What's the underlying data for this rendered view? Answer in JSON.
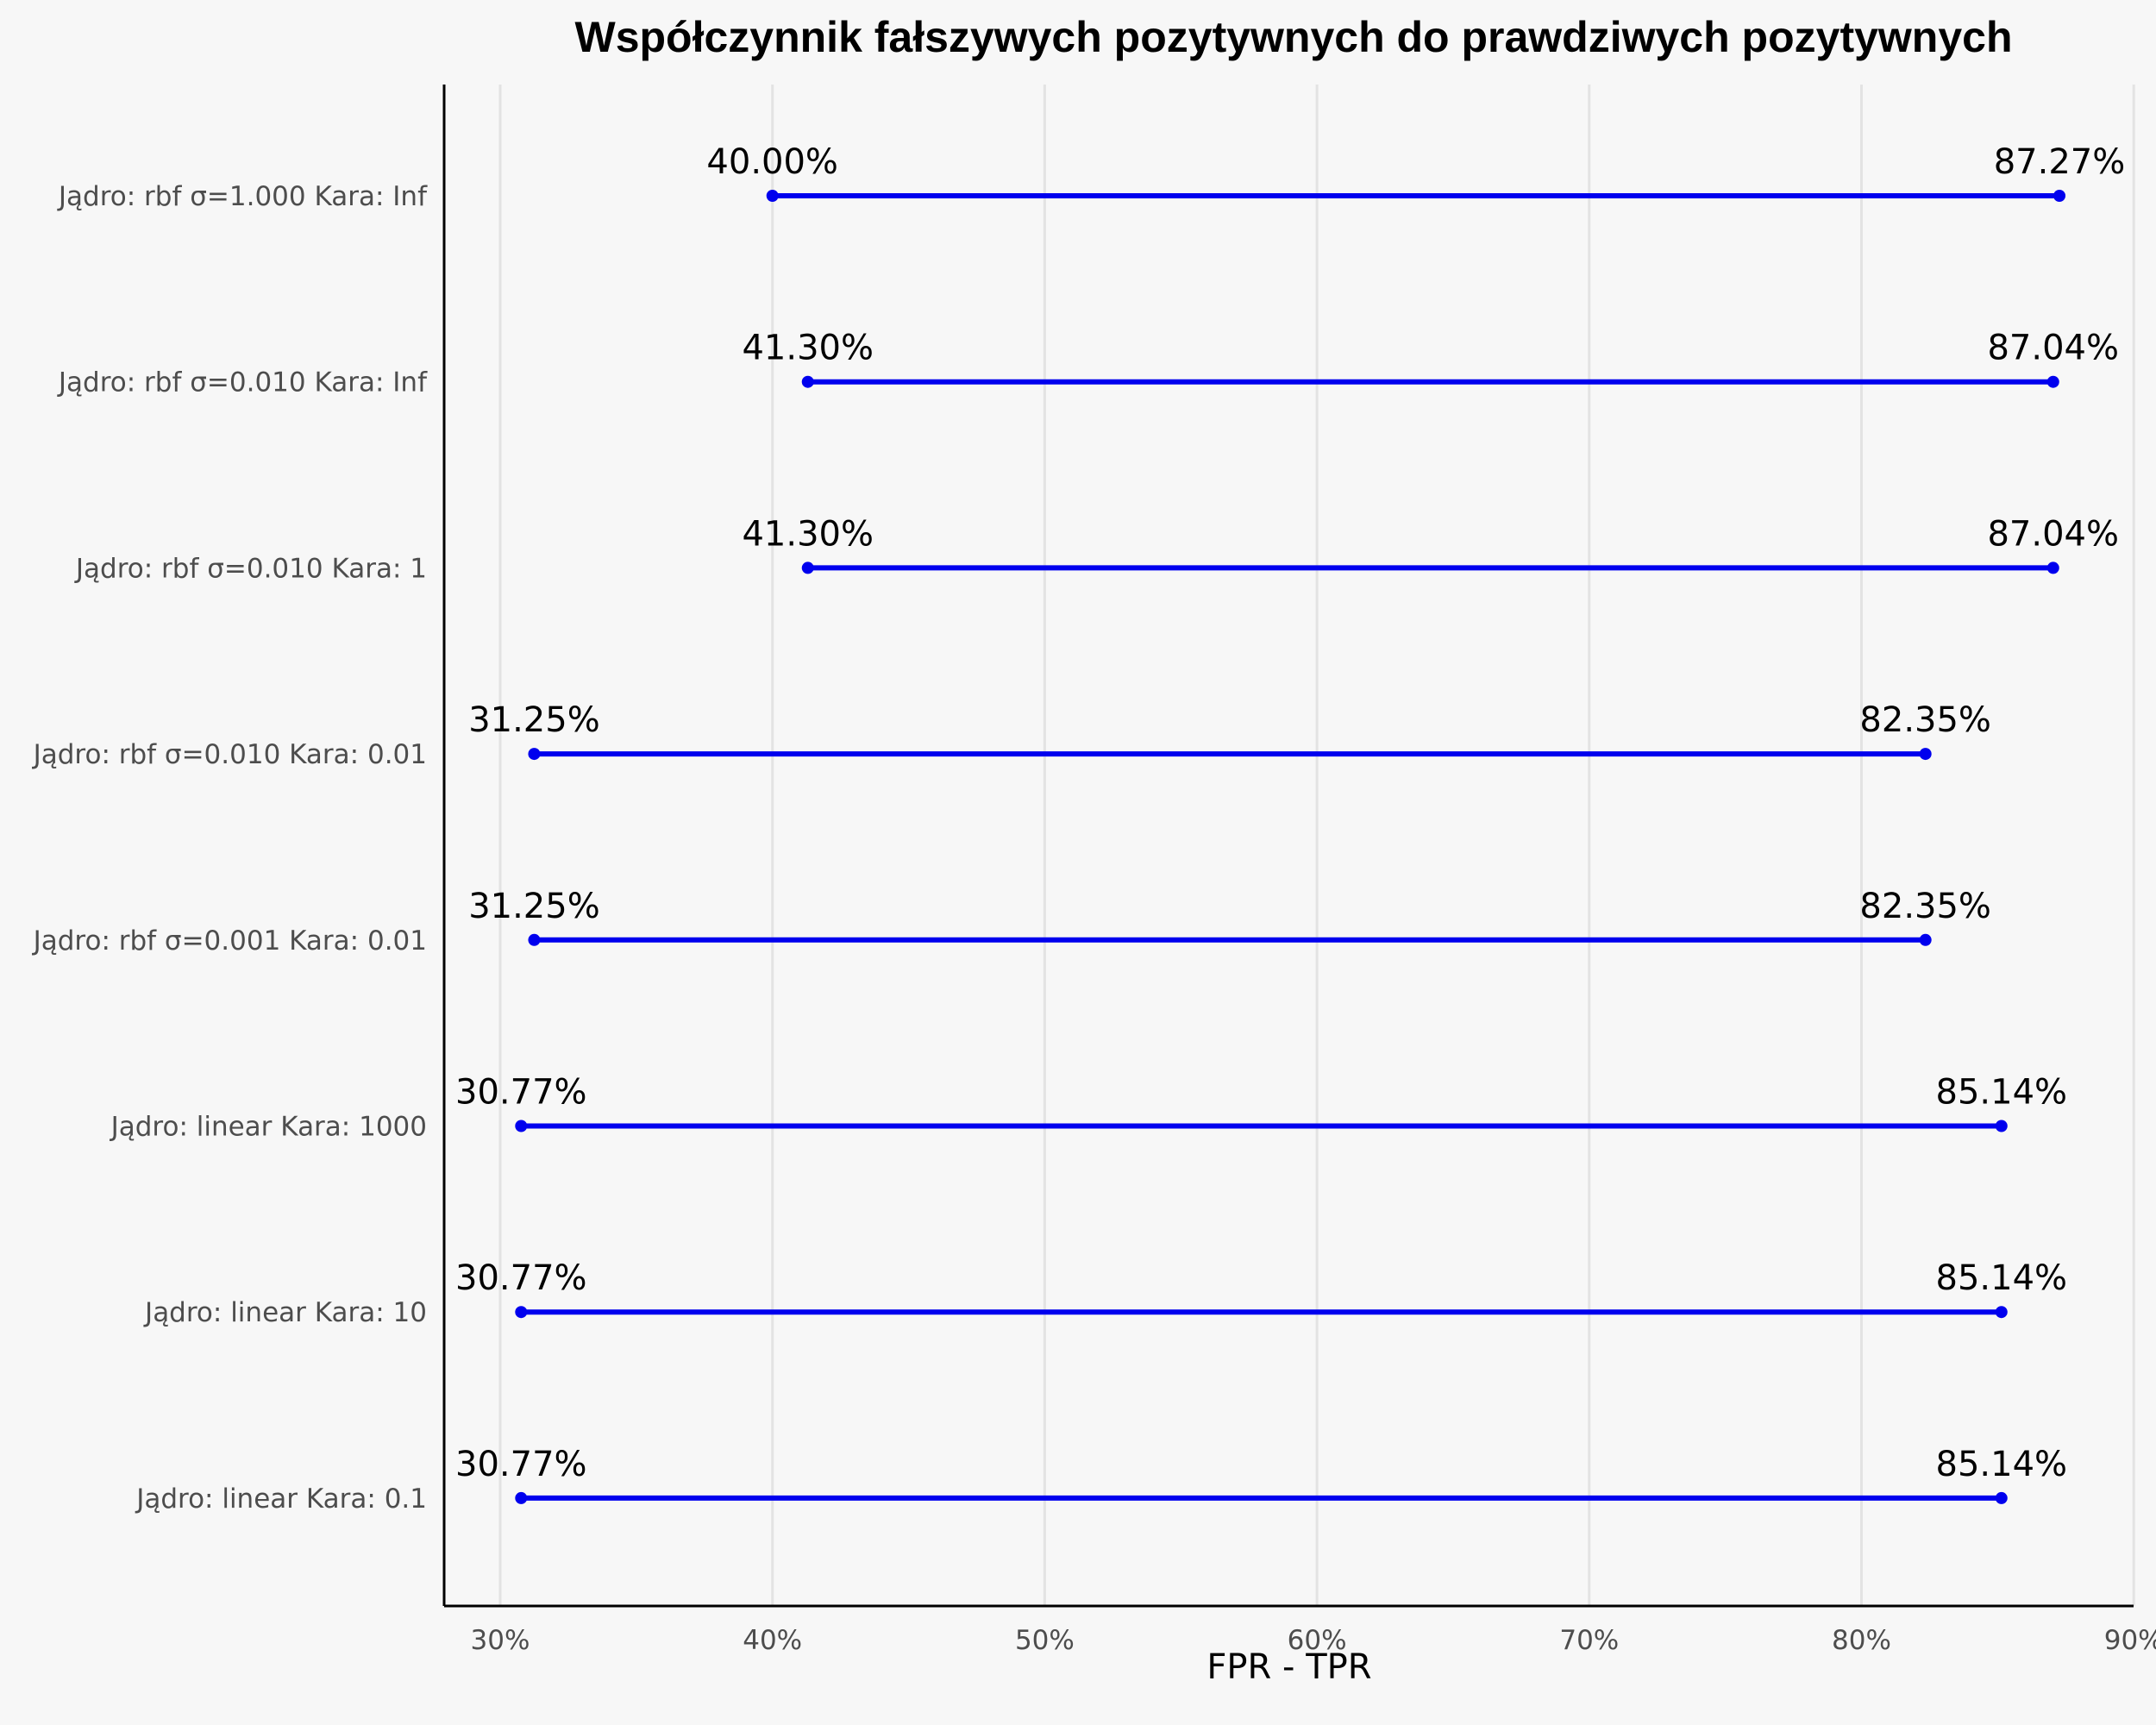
{
  "chart_data": {
    "type": "dumbbell",
    "title": "Współczynnik fałszywych pozytywnych do prawdziwych pozytywnych",
    "xlabel": "FPR - TPR",
    "ylabel": "",
    "xlim": [
      28,
      90
    ],
    "x_ticks": [
      30,
      40,
      50,
      60,
      70,
      80,
      90
    ],
    "x_tick_labels": [
      "30%",
      "40%",
      "50%",
      "60%",
      "70%",
      "80%",
      "90%"
    ],
    "grid": "vertical-major",
    "series_color": "#0000ee",
    "categories": [
      "Jądro: rbf σ=1.000 Kara: Inf",
      "Jądro: rbf σ=0.010 Kara: Inf",
      "Jądro: rbf σ=0.010 Kara: 1",
      "Jądro: rbf σ=0.010 Kara: 0.01",
      "Jądro: rbf σ=0.001 Kara: 0.01",
      "Jądro: linear  Kara: 1000",
      "Jądro: linear  Kara: 10",
      "Jądro: linear  Kara: 0.1"
    ],
    "fpr": [
      40.0,
      41.3,
      41.3,
      31.25,
      31.25,
      30.77,
      30.77,
      30.77
    ],
    "tpr": [
      87.27,
      87.04,
      87.04,
      82.35,
      82.35,
      85.14,
      85.14,
      85.14
    ],
    "fpr_labels": [
      "40.00%",
      "41.30%",
      "41.30%",
      "31.25%",
      "31.25%",
      "30.77%",
      "30.77%",
      "30.77%"
    ],
    "tpr_labels": [
      "87.27%",
      "87.04%",
      "87.04%",
      "82.35%",
      "82.35%",
      "85.14%",
      "85.14%",
      "85.14%"
    ]
  }
}
